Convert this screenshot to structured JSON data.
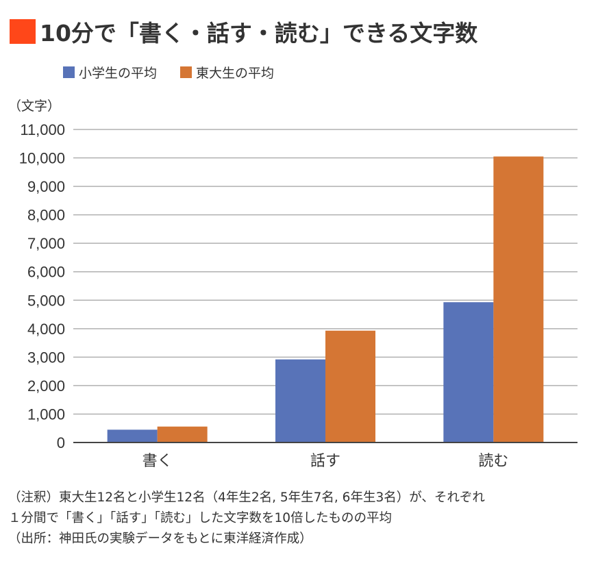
{
  "title": "10分で「書く・話す・読む」できる文字数",
  "colors": {
    "title_square": "#ff4719",
    "series": [
      "#5873b8",
      "#d57634"
    ]
  },
  "chart_data": {
    "type": "bar",
    "title": "10分で「書く・話す・読む」できる文字数",
    "ylabel": "（文字）",
    "categories": [
      "書く",
      "話す",
      "読む"
    ],
    "series": [
      {
        "name": "小学生の平均",
        "values": [
          450,
          2920,
          4930
        ]
      },
      {
        "name": "東大生の平均",
        "values": [
          560,
          3930,
          10050
        ]
      }
    ],
    "ylim": [
      0,
      11000
    ],
    "yticks": [
      0,
      1000,
      2000,
      3000,
      4000,
      5000,
      6000,
      7000,
      8000,
      9000,
      10000,
      11000
    ],
    "ytick_labels": [
      "0",
      "1,000",
      "2,000",
      "3,000",
      "4,000",
      "5,000",
      "6,000",
      "7,000",
      "8,000",
      "9,000",
      "10,000",
      "11,000"
    ],
    "grid": true,
    "legend": "top-left"
  },
  "notes": [
    "（注釈）東大生12名と小学生12名（4年生2名, 5年生7名, 6年生3名）が、それぞれ",
    "１分間で「書く」「話す」「読む」した文字数を10倍したものの平均",
    "（出所：神田氏の実験データをもとに東洋経済作成）"
  ]
}
